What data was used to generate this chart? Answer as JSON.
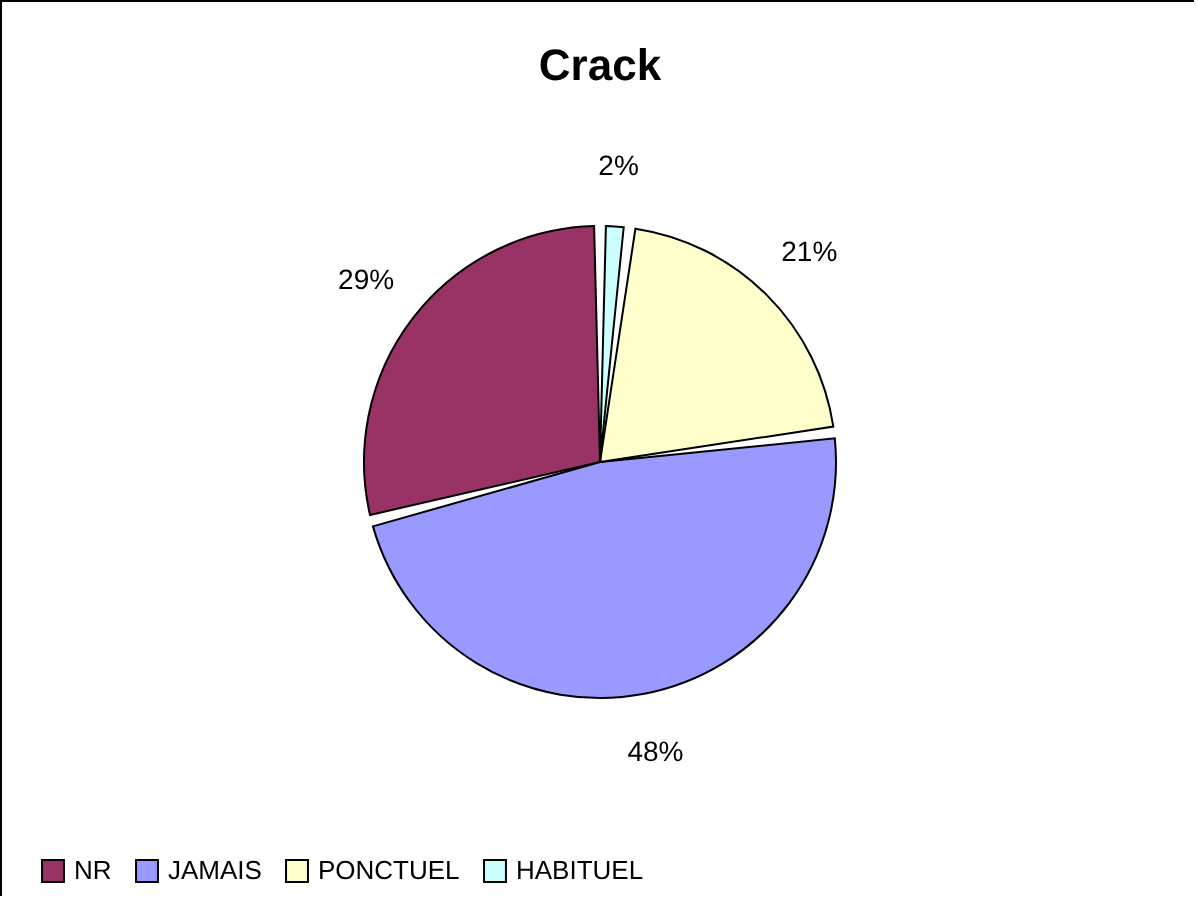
{
  "chart_data": {
    "type": "pie",
    "title": "Crack",
    "categories": [
      "NR",
      "JAMAIS",
      "PONCTUEL",
      "HABITUEL"
    ],
    "values": [
      29,
      48,
      21,
      2
    ],
    "colors": [
      "#993366",
      "#9999ff",
      "#ffffcc",
      "#ccffff"
    ],
    "value_labels": [
      "29%",
      "48%",
      "21%",
      "2%"
    ],
    "legend": "bottom"
  }
}
